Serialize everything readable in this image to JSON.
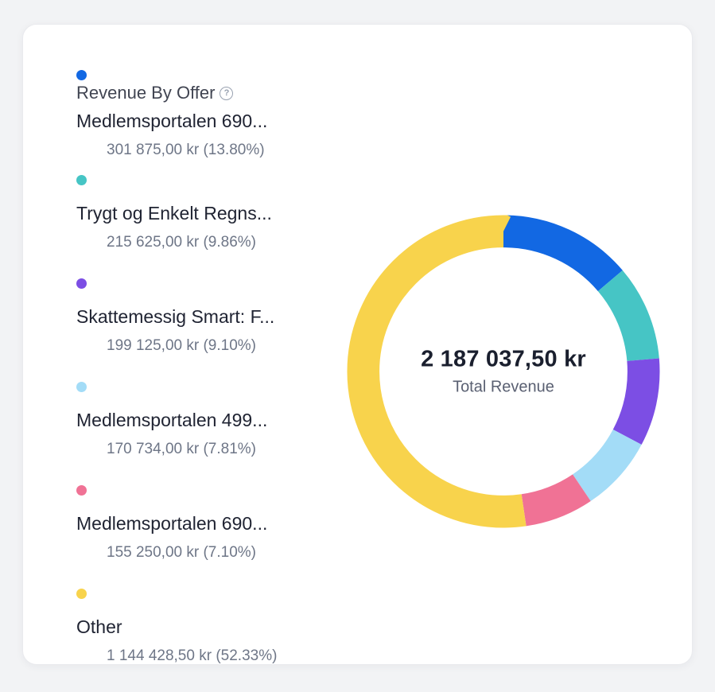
{
  "card": {
    "title": "Revenue By Offer",
    "help_icon": "?"
  },
  "chart_data": {
    "type": "pie",
    "subtype": "donut",
    "title": "Revenue By Offer",
    "center_value": "2 187 037,50 kr",
    "center_label": "Total Revenue",
    "total_value": 2187037.5,
    "currency": "kr",
    "legend_position": "left",
    "start_angle": "top",
    "direction": "clockwise",
    "segments": [
      {
        "label": "Medlemsportalen 690...",
        "value": 301875.0,
        "value_text": "301 875,00 kr (13.80%)",
        "percent": 13.8,
        "color": "#1268e3"
      },
      {
        "label": "Trygt og Enkelt Regns...",
        "value": 215625.0,
        "value_text": "215 625,00 kr (9.86%)",
        "percent": 9.86,
        "color": "#46c5c5"
      },
      {
        "label": "Skattemessig Smart: F...",
        "value": 199125.0,
        "value_text": "199 125,00 kr (9.10%)",
        "percent": 9.1,
        "color": "#7c4ee4"
      },
      {
        "label": "Medlemsportalen 499...",
        "value": 170734.0,
        "value_text": "170 734,00 kr (7.81%)",
        "percent": 7.81,
        "color": "#a3dcf7"
      },
      {
        "label": "Medlemsportalen 690...",
        "value": 155250.0,
        "value_text": "155 250,00 kr (7.10%)",
        "percent": 7.1,
        "color": "#f07295"
      },
      {
        "label": "Other",
        "value": 1144428.5,
        "value_text": "1 144 428,50 kr (52.33%)",
        "percent": 52.33,
        "color": "#f8d34c"
      }
    ]
  }
}
